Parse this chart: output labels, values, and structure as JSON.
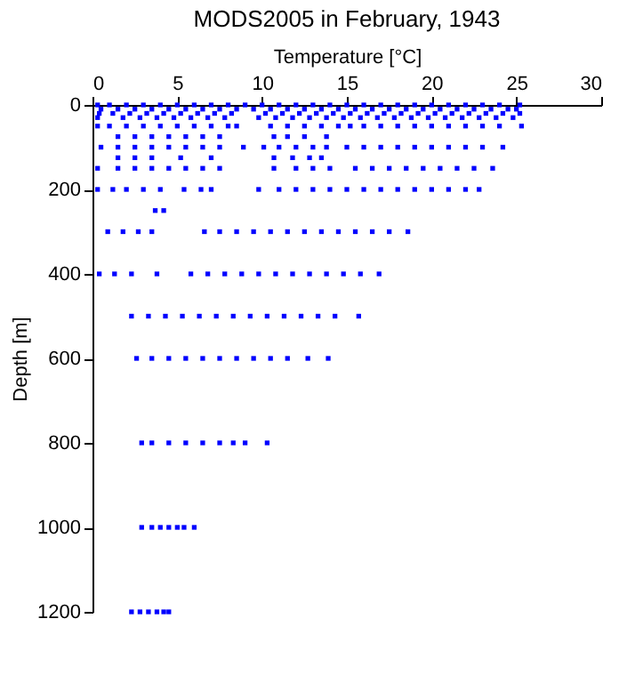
{
  "chart_data": {
    "type": "scatter",
    "title": "MODS2005 in February, 1943",
    "xlabel": "Temperature [°C]",
    "ylabel": "Depth [m]",
    "xlim": [
      0,
      30
    ],
    "xticks": [
      0,
      5,
      10,
      15,
      20,
      25,
      30
    ],
    "ylim": [
      1200,
      0
    ],
    "yticks": [
      0,
      200,
      400,
      600,
      800,
      1000,
      1200
    ],
    "grid": false,
    "marker": "square",
    "series": [
      {
        "color": "#0000ff",
        "x": [
          0.3,
          1,
          2,
          3,
          4,
          5,
          6,
          7,
          8,
          9,
          10,
          11,
          12,
          13,
          14,
          15,
          16,
          17,
          18,
          19,
          20,
          21,
          22,
          23,
          24,
          25.2,
          0.5,
          1.5,
          2.5,
          3.5,
          4.5,
          5.5,
          6.5,
          7.5,
          8.5,
          9.5,
          10.5,
          11.5,
          12.5,
          13.5,
          14.5,
          15.5,
          16.5,
          17.5,
          18.5,
          19.5,
          20.5,
          21.5,
          22.5,
          23.5,
          24.5,
          25,
          0.4,
          1.2,
          2.2,
          3.2,
          4.2,
          5.2,
          6.2,
          7.2,
          8.2,
          10.2,
          11.2,
          12.2,
          13.2,
          14.2,
          15.2,
          16.2,
          17.2,
          18.2,
          19.2,
          20.2,
          21.2,
          22.2,
          23.2,
          24.2,
          25.2,
          0.3,
          1.8,
          2.8,
          3.8,
          4.8,
          5.8,
          6.8,
          7.8,
          9.8,
          10.8,
          11.8,
          12.8,
          13.8,
          14.8,
          15.8,
          16.8,
          17.8,
          18.8,
          19.8,
          20.8,
          21.8,
          22.8,
          23.8,
          24.8,
          0.3,
          1,
          2,
          3,
          4,
          5,
          6,
          7,
          8,
          8.5,
          10.5,
          11.5,
          12.5,
          13.5,
          14.5,
          15.2,
          16,
          17,
          18,
          19,
          20,
          21,
          22,
          23,
          24,
          25.3,
          1.5,
          2.5,
          3.5,
          4.5,
          5.5,
          6.5,
          7.5,
          10.7,
          11.5,
          12.5,
          13.8,
          0.5,
          1.5,
          2.5,
          3.5,
          4.5,
          5.5,
          6.5,
          7.5,
          8.9,
          10.1,
          11,
          12,
          13,
          13.8,
          15,
          16,
          17,
          18,
          19,
          20,
          21,
          22,
          23,
          24.2,
          1.5,
          2.5,
          3.5,
          5.2,
          7,
          10.7,
          11.8,
          12.8,
          13.5,
          0.3,
          1.5,
          2.5,
          3.5,
          4.5,
          5.5,
          6.5,
          7.5,
          10.7,
          12,
          13,
          14,
          15.5,
          16.5,
          17.5,
          18.5,
          19.5,
          20.5,
          21.5,
          22.5,
          23.6,
          0.3,
          1.2,
          2,
          3,
          4,
          5.4,
          6.4,
          7,
          9.8,
          11,
          12,
          13,
          14,
          15,
          16,
          17,
          18,
          19,
          20,
          21,
          22,
          22.8,
          3.7,
          4.2,
          0.9,
          1.8,
          2.7,
          3.5,
          6.6,
          7.5,
          8.5,
          9.5,
          10.5,
          11.5,
          12.5,
          13.5,
          14.5,
          15.5,
          16.5,
          17.5,
          18.6,
          0.4,
          1.3,
          2.3,
          3.8,
          5.8,
          6.8,
          7.8,
          8.8,
          9.8,
          10.8,
          11.8,
          12.8,
          13.8,
          14.8,
          15.8,
          16.9,
          2.3,
          3.3,
          4.3,
          5.3,
          6.3,
          7.3,
          8.3,
          9.3,
          10.3,
          11.3,
          12.3,
          13.3,
          14.3,
          15.7,
          2.6,
          3.5,
          4.5,
          5.5,
          6.5,
          7.5,
          8.5,
          9.5,
          10.5,
          11.5,
          12.7,
          13.9,
          2.9,
          3.5,
          4.5,
          5.5,
          6.5,
          7.5,
          8.3,
          9,
          10.3,
          2.9,
          3.5,
          4,
          4.5,
          5,
          5.4,
          6,
          2.3,
          2.8,
          3.3,
          3.8,
          4.2,
          4.5
        ],
        "values": [
          0,
          0,
          0,
          0,
          0,
          0,
          0,
          0,
          0,
          0,
          0,
          0,
          0,
          0,
          0,
          0,
          0,
          0,
          0,
          0,
          0,
          0,
          0,
          0,
          0,
          0,
          10,
          10,
          10,
          10,
          10,
          10,
          10,
          10,
          10,
          10,
          10,
          10,
          10,
          10,
          10,
          10,
          10,
          10,
          10,
          10,
          10,
          10,
          10,
          10,
          10,
          10,
          20,
          20,
          20,
          20,
          20,
          20,
          20,
          20,
          20,
          20,
          20,
          20,
          20,
          20,
          20,
          20,
          20,
          20,
          20,
          20,
          20,
          20,
          20,
          20,
          20,
          30,
          30,
          30,
          30,
          30,
          30,
          30,
          30,
          30,
          30,
          30,
          30,
          30,
          30,
          30,
          30,
          30,
          30,
          30,
          30,
          30,
          30,
          30,
          30,
          50,
          50,
          50,
          50,
          50,
          50,
          50,
          50,
          50,
          50,
          50,
          50,
          50,
          50,
          50,
          50,
          50,
          50,
          50,
          50,
          50,
          50,
          50,
          50,
          50,
          50,
          75,
          75,
          75,
          75,
          75,
          75,
          75,
          75,
          75,
          75,
          75,
          100,
          100,
          100,
          100,
          100,
          100,
          100,
          100,
          100,
          100,
          100,
          100,
          100,
          100,
          100,
          100,
          100,
          100,
          100,
          100,
          100,
          100,
          100,
          100,
          125,
          125,
          125,
          125,
          125,
          125,
          125,
          125,
          125,
          150,
          150,
          150,
          150,
          150,
          150,
          150,
          150,
          150,
          150,
          150,
          150,
          150,
          150,
          150,
          150,
          150,
          150,
          150,
          150,
          150,
          200,
          200,
          200,
          200,
          200,
          200,
          200,
          200,
          200,
          200,
          200,
          200,
          200,
          200,
          200,
          200,
          200,
          200,
          200,
          200,
          200,
          200,
          250,
          250,
          300,
          300,
          300,
          300,
          300,
          300,
          300,
          300,
          300,
          300,
          300,
          300,
          300,
          300,
          300,
          300,
          300,
          400,
          400,
          400,
          400,
          400,
          400,
          400,
          400,
          400,
          400,
          400,
          400,
          400,
          400,
          400,
          400,
          500,
          500,
          500,
          500,
          500,
          500,
          500,
          500,
          500,
          500,
          500,
          500,
          500,
          500,
          600,
          600,
          600,
          600,
          600,
          600,
          600,
          600,
          600,
          600,
          600,
          600,
          800,
          800,
          800,
          800,
          800,
          800,
          800,
          800,
          800,
          1000,
          1000,
          1000,
          1000,
          1000,
          1000,
          1000,
          1200,
          1200,
          1200,
          1200,
          1200,
          1200
        ]
      }
    ]
  }
}
